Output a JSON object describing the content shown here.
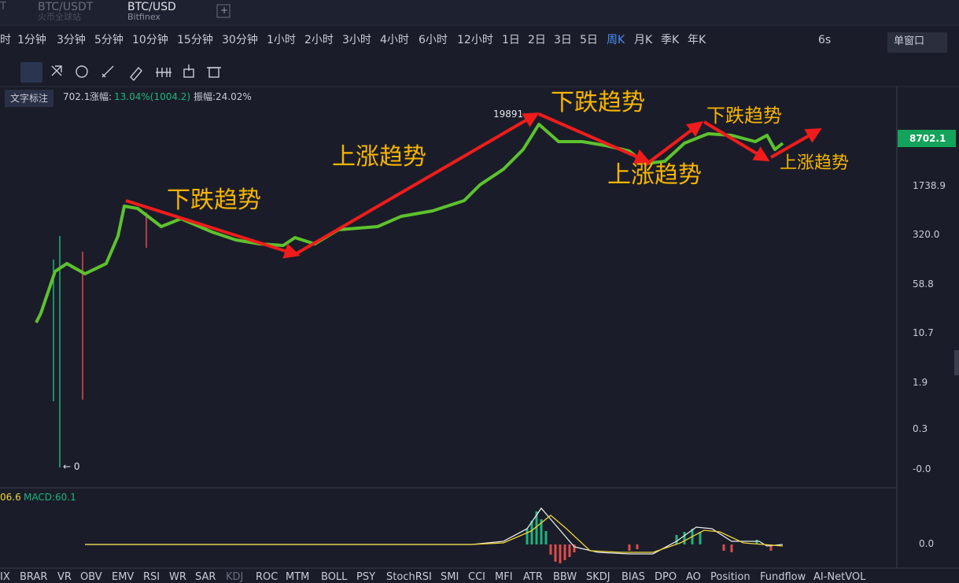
{
  "tabs": {
    "partial": "T",
    "pair1": "BTC/USDT",
    "exchange1": "火币全球站",
    "pair2": "BTC/USD",
    "exchange2": "Bitfinex",
    "add": "+"
  },
  "intervals": [
    "时",
    "1分钟",
    "3分钟",
    "5分钟",
    "10分钟",
    "15分钟",
    "30分钟",
    "1小时",
    "2小时",
    "3小时",
    "4小时",
    "6小时",
    "12小时",
    "1日",
    "2日",
    "3日",
    "5日",
    "周K",
    "月K",
    "季K",
    "年K"
  ],
  "refresh": "6s",
  "window_mode": "单窗口",
  "tooltip": "文字标注",
  "info": {
    "last": "702.1",
    "change_label": "涨幅:",
    "change": "13.04%(1004.2)",
    "amplitude": "振幅:24.02%"
  },
  "annotations": [
    "下跌趋势",
    "上涨趋势",
    "下跌趋势",
    "上涨趋势",
    "下跌趋势",
    "上涨趋势"
  ],
  "high_label": "19891",
  "low_label": "← 0",
  "price_axis": [
    "8702.1",
    "1738.9",
    "320.0",
    "58.8",
    "10.7",
    "1.9",
    "0.3",
    "-0.0"
  ],
  "macd": {
    "left": "06.6",
    "label": "MACD:60.1",
    "axis": "0.0"
  },
  "indicators": [
    "IX",
    "BRAR",
    "VR",
    "OBV",
    "EMV",
    "RSI",
    "WR",
    "SAR",
    "KDJ",
    "ROC",
    "MTM",
    "BOLL",
    "PSY",
    "StochRSI",
    "SMI",
    "CCI",
    "MFI",
    "ATR",
    "BBW",
    "SKDJ",
    "BIAS",
    "DPO",
    "AO",
    "Position",
    "Fundflow",
    "AI-NetVOL"
  ]
}
